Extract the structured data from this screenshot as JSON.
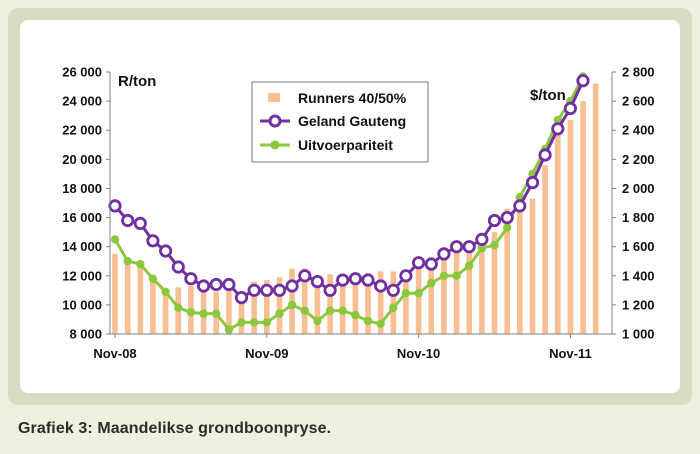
{
  "caption": "Grafiek 3: Maandelikse grondboonpryse.",
  "chart_data": {
    "type": "bar+line",
    "left_unit": "R/ton",
    "right_unit": "$/ton",
    "y_left_lim": [
      8000,
      26000
    ],
    "y_right_lim": [
      1000,
      2800
    ],
    "y_left_ticks": [
      "8 000",
      "10 000",
      "12 000",
      "14 000",
      "16 000",
      "18 000",
      "20 000",
      "22 000",
      "24 000",
      "26 000"
    ],
    "y_right_ticks": [
      "1 000",
      "1 200",
      "1 400",
      "1 600",
      "1 800",
      "2 000",
      "2 200",
      "2 400",
      "2 600",
      "2 800"
    ],
    "x_tick_labels": [
      "Nov-08",
      "Nov-09",
      "Nov-10",
      "Nov-11"
    ],
    "x_tick_index": [
      0,
      12,
      24,
      36
    ],
    "grid": false,
    "legend_position": "top-center",
    "series": [
      {
        "name": "Runners 40/50%",
        "type": "bar",
        "axis": "right",
        "color": "#f9bf93",
        "values": [
          1550,
          1480,
          1470,
          1370,
          1310,
          1320,
          1330,
          1300,
          1290,
          1300,
          1250,
          1360,
          1370,
          1390,
          1450,
          1450,
          1400,
          1410,
          1410,
          1420,
          1420,
          1430,
          1430,
          1440,
          1470,
          1530,
          1530,
          1580,
          1600,
          1650,
          1700,
          1860,
          1920,
          1930,
          2160,
          2370,
          2470,
          2600,
          2720
        ]
      },
      {
        "name": "Geland Gauteng",
        "type": "line",
        "axis": "left",
        "color": "#7030a0",
        "marker": "hollow-circle",
        "values": [
          16800,
          15800,
          15600,
          14400,
          13700,
          12600,
          11800,
          11300,
          11400,
          11400,
          10500,
          11000,
          11000,
          11000,
          11300,
          12000,
          11600,
          11000,
          11700,
          11800,
          11700,
          11300,
          11000,
          12000,
          12900,
          12800,
          13500,
          14000,
          14000,
          14500,
          15800,
          16000,
          16800,
          18400,
          20300,
          22100,
          23500,
          25400
        ]
      },
      {
        "name": "Uitvoerpariteit",
        "type": "line",
        "axis": "left",
        "color": "#8dc63f",
        "marker": "filled-circle",
        "values": [
          14500,
          13000,
          12800,
          11800,
          10900,
          9800,
          9500,
          9400,
          9400,
          8300,
          8800,
          8800,
          8800,
          9400,
          10000,
          9600,
          8900,
          9600,
          9600,
          9300,
          8900,
          8700,
          9800,
          10800,
          10800,
          11500,
          12000,
          12000,
          12700,
          13900,
          14100,
          15300,
          17400,
          19000,
          20700,
          22700,
          24000,
          25700
        ]
      }
    ]
  }
}
